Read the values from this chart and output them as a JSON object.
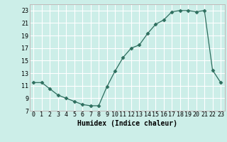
{
  "x": [
    0,
    1,
    2,
    3,
    4,
    5,
    6,
    7,
    8,
    9,
    10,
    11,
    12,
    13,
    14,
    15,
    16,
    17,
    18,
    19,
    20,
    21,
    22,
    23
  ],
  "y": [
    11.5,
    11.5,
    10.5,
    9.5,
    9.0,
    8.5,
    8.0,
    7.8,
    7.8,
    10.8,
    13.3,
    15.5,
    17.0,
    17.5,
    19.3,
    20.8,
    21.5,
    22.8,
    23.0,
    23.0,
    22.8,
    23.0,
    13.5,
    11.5
  ],
  "xlabel": "Humidex (Indice chaleur)",
  "xlim": [
    -0.5,
    23.5
  ],
  "ylim": [
    7,
    24
  ],
  "yticks": [
    7,
    9,
    11,
    13,
    15,
    17,
    19,
    21,
    23
  ],
  "xticks": [
    0,
    1,
    2,
    3,
    4,
    5,
    6,
    7,
    8,
    9,
    10,
    11,
    12,
    13,
    14,
    15,
    16,
    17,
    18,
    19,
    20,
    21,
    22,
    23
  ],
  "line_color": "#2d6e5e",
  "marker": "D",
  "marker_size": 2.5,
  "bg_color": "#cceee8",
  "grid_color": "#ffffff",
  "grid_minor_color": "#ddeee8",
  "axis_fontsize": 7,
  "tick_fontsize": 6
}
